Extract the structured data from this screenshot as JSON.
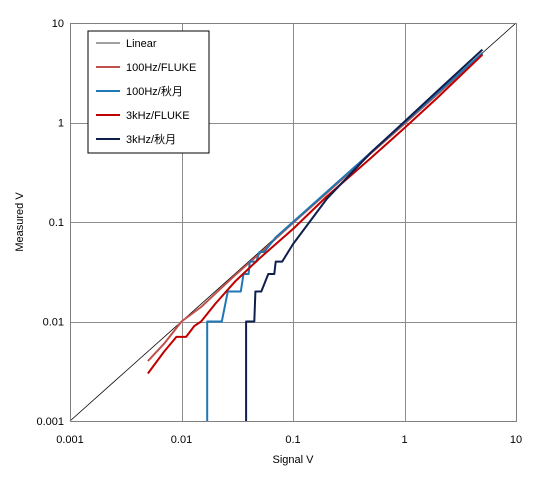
{
  "chart_data": {
    "type": "line",
    "xscale": "log",
    "yscale": "log",
    "xlim": [
      0.001,
      10
    ],
    "ylim": [
      0.001,
      10
    ],
    "grid": true,
    "legend_position": "top-left",
    "xlabel": "Signal V",
    "ylabel": "Measured V",
    "x_tick_labels": [
      "0.001",
      "0.01",
      "0.1",
      "1",
      "10"
    ],
    "y_tick_labels": [
      "0.001",
      "0.01",
      "0.1",
      "1",
      "10"
    ],
    "series": [
      {
        "name": "Linear",
        "color": "#000000",
        "width": 0.8,
        "points": [
          [
            0.001,
            0.001
          ],
          [
            10,
            10
          ]
        ]
      },
      {
        "name": "100Hz/FLUKE",
        "color": "#c0504d",
        "width": 2,
        "points": [
          [
            0.005,
            0.004
          ],
          [
            0.007,
            0.006
          ],
          [
            0.01,
            0.01
          ],
          [
            0.015,
            0.014
          ],
          [
            0.02,
            0.019
          ],
          [
            0.03,
            0.029
          ],
          [
            0.05,
            0.048
          ],
          [
            0.07,
            0.068
          ],
          [
            0.1,
            0.098
          ],
          [
            0.2,
            0.195
          ],
          [
            0.5,
            0.49
          ],
          [
            1,
            0.97
          ],
          [
            2,
            1.95
          ],
          [
            5,
            4.9
          ]
        ]
      },
      {
        "name": "100Hz/秋月",
        "color": "#1f77b4",
        "width": 2,
        "points": [
          [
            0.017,
            0.001
          ],
          [
            0.017,
            0.01
          ],
          [
            0.023,
            0.01
          ],
          [
            0.026,
            0.02
          ],
          [
            0.034,
            0.02
          ],
          [
            0.036,
            0.03
          ],
          [
            0.04,
            0.03
          ],
          [
            0.041,
            0.04
          ],
          [
            0.047,
            0.04
          ],
          [
            0.05,
            0.05
          ],
          [
            0.055,
            0.05
          ],
          [
            0.07,
            0.07
          ],
          [
            0.1,
            0.1
          ],
          [
            0.2,
            0.2
          ],
          [
            0.5,
            0.5
          ],
          [
            1,
            1.0
          ],
          [
            2,
            2.0
          ],
          [
            5,
            5.0
          ]
        ]
      },
      {
        "name": "3kHz/FLUKE",
        "color": "#c00000",
        "width": 2,
        "points": [
          [
            0.005,
            0.003
          ],
          [
            0.007,
            0.005
          ],
          [
            0.009,
            0.007
          ],
          [
            0.011,
            0.007
          ],
          [
            0.013,
            0.009
          ],
          [
            0.015,
            0.01
          ],
          [
            0.02,
            0.015
          ],
          [
            0.03,
            0.025
          ],
          [
            0.05,
            0.043
          ],
          [
            0.07,
            0.06
          ],
          [
            0.1,
            0.085
          ],
          [
            0.2,
            0.18
          ],
          [
            0.5,
            0.44
          ],
          [
            1,
            0.88
          ],
          [
            2,
            1.8
          ],
          [
            5,
            4.8
          ]
        ]
      },
      {
        "name": "3kHz/秋月",
        "color": "#0e1f4d",
        "width": 2,
        "points": [
          [
            0.038,
            0.001
          ],
          [
            0.038,
            0.01
          ],
          [
            0.045,
            0.01
          ],
          [
            0.046,
            0.02
          ],
          [
            0.052,
            0.02
          ],
          [
            0.06,
            0.03
          ],
          [
            0.068,
            0.03
          ],
          [
            0.07,
            0.04
          ],
          [
            0.08,
            0.04
          ],
          [
            0.1,
            0.06
          ],
          [
            0.2,
            0.17
          ],
          [
            0.5,
            0.5
          ],
          [
            1,
            1.02
          ],
          [
            2,
            2.1
          ],
          [
            5,
            5.4
          ]
        ]
      }
    ]
  }
}
